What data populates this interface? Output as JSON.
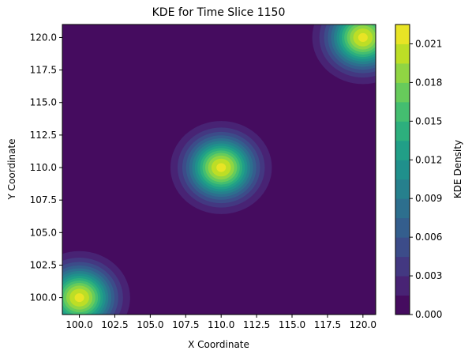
{
  "chart_data": {
    "type": "heatmap",
    "subtype": "filled-contour",
    "title": "KDE for Time Slice 1150",
    "xlabel": "X Coordinate",
    "ylabel": "Y Coordinate",
    "xlim": [
      98.8,
      120.9
    ],
    "ylim": [
      98.7,
      121.0
    ],
    "x_ticks": [
      "100.0",
      "102.5",
      "105.0",
      "107.5",
      "110.0",
      "112.5",
      "115.0",
      "117.5",
      "120.0"
    ],
    "y_ticks": [
      "100.0",
      "102.5",
      "105.0",
      "107.5",
      "110.0",
      "112.5",
      "115.0",
      "117.5",
      "120.0"
    ],
    "colorbar": {
      "label": "KDE Density",
      "min": 0.0,
      "max": 0.0225,
      "ticks": [
        "0.000",
        "0.003",
        "0.006",
        "0.009",
        "0.012",
        "0.015",
        "0.018",
        "0.021"
      ],
      "colormap": "viridis",
      "levels": 15
    },
    "hotspots": [
      {
        "x": 100.0,
        "y": 100.0,
        "peak_density": 0.0215
      },
      {
        "x": 110.0,
        "y": 110.0,
        "peak_density": 0.0215
      },
      {
        "x": 120.0,
        "y": 120.0,
        "peak_density": 0.0215
      }
    ],
    "kernel_bandwidth": 1.55,
    "grid": false
  }
}
